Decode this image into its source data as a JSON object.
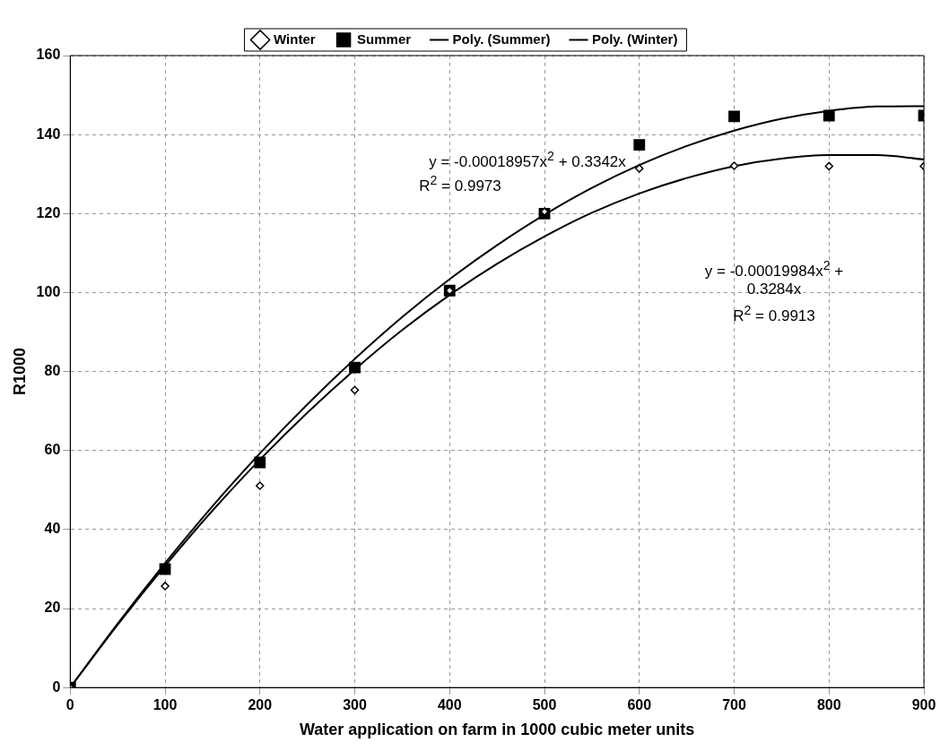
{
  "chart_data": {
    "type": "scatter",
    "xlabel": "Water application on farm in 1000 cubic meter units",
    "ylabel": "R1000",
    "x": [
      0,
      100,
      200,
      300,
      400,
      500,
      600,
      700,
      800,
      900
    ],
    "series": [
      {
        "name": "Winter",
        "color": "#000000",
        "marker": "diamond",
        "values": [
          0,
          25.7,
          51.1,
          75.3,
          100.5,
          120.5,
          131.4,
          132.1,
          132,
          132
        ]
      },
      {
        "name": "Summer",
        "color": "#000000",
        "marker": "square",
        "values": [
          0,
          30,
          57,
          81,
          100.5,
          120,
          137.4,
          144.6,
          144.8,
          144.8
        ]
      },
      {
        "name": "Poly. (Summer)",
        "type": "line",
        "color": "#000000",
        "marker": "none",
        "line_style": "solid",
        "x": [
          0,
          50,
          100,
          150,
          200,
          250,
          300,
          350,
          400,
          450,
          500,
          550,
          600,
          650,
          700,
          750,
          800,
          850,
          900
        ],
        "values": [
          0,
          16.2,
          31.5,
          45.9,
          59.3,
          71.7,
          83.2,
          93.8,
          103.4,
          112,
          119.7,
          126.5,
          132.3,
          137.1,
          141,
          144,
          146,
          147.1,
          147.2
        ]
      },
      {
        "name": "Poly. (Winter)",
        "type": "line",
        "color": "#000000",
        "marker": "none",
        "line_style": "solid",
        "x": [
          0,
          50,
          100,
          150,
          200,
          250,
          300,
          350,
          400,
          450,
          500,
          550,
          600,
          650,
          700,
          750,
          800,
          850,
          900
        ],
        "values": [
          0,
          15.9,
          30.8,
          44.8,
          57.7,
          69.6,
          80.5,
          90.5,
          99.4,
          107.3,
          114.2,
          120.2,
          125.1,
          129,
          132,
          133.9,
          134.8,
          134.8,
          133.7
        ]
      }
    ],
    "xlim": [
      0,
      900
    ],
    "xticks": [
      0,
      100,
      200,
      300,
      400,
      500,
      600,
      700,
      800,
      900
    ],
    "ylim": [
      0,
      160
    ],
    "yticks": [
      0,
      20,
      40,
      60,
      80,
      100,
      120,
      140,
      160
    ],
    "grid": true,
    "legend": "top",
    "annotations": [
      "y = -0.00018957x$^{2}$ + 0.3342x",
      "R$^{2}$ = 0.9973",
      "y = -0.00019984x$^{2}$ + 0.3284x",
      "R$^{2}$ = 0.9913"
    ]
  }
}
